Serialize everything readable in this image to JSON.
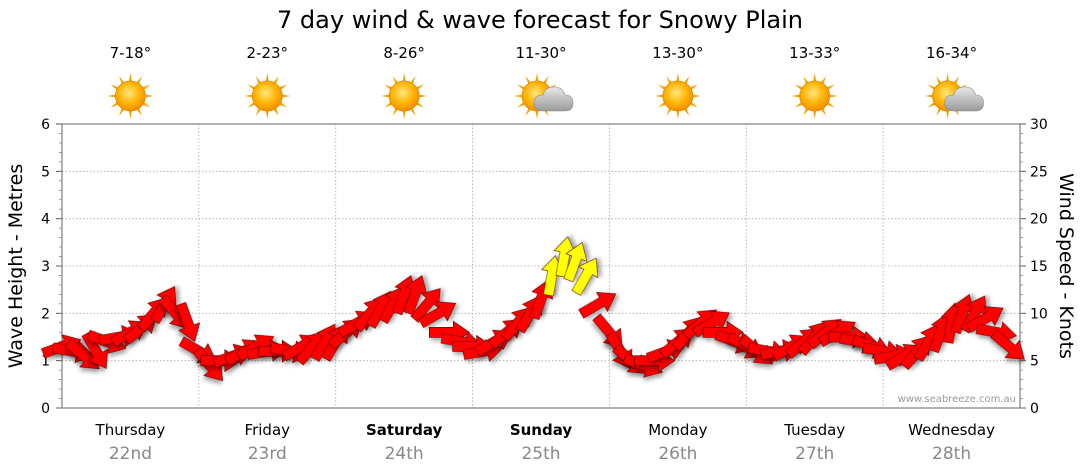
{
  "chart_data": {
    "type": "line",
    "title": "7 day wind & wave forecast for Snowy Plain",
    "ylabel_left": "Wave Height - Metres",
    "ylabel_right": "Wind Speed - Knots",
    "ylim_left": [
      0,
      6
    ],
    "ylim_right": [
      0,
      30
    ],
    "yticks_left": [
      "0",
      "1",
      "2",
      "3",
      "4",
      "5",
      "6"
    ],
    "yticks_right": [
      "0",
      "5",
      "10",
      "15",
      "20",
      "25",
      "30"
    ],
    "watermark": "www.seabreeze.com.au",
    "days": [
      {
        "name": "Thursday",
        "date": "22nd",
        "temp": "7-18°",
        "icon": "sun-icon",
        "bold": false
      },
      {
        "name": "Friday",
        "date": "23rd",
        "temp": "2-23°",
        "icon": "sun-icon",
        "bold": false
      },
      {
        "name": "Saturday",
        "date": "24th",
        "temp": "8-26°",
        "icon": "sun-icon",
        "bold": true
      },
      {
        "name": "Sunday",
        "date": "25th",
        "temp": "11-30°",
        "icon": "sun-cloud-icon",
        "bold": true
      },
      {
        "name": "Monday",
        "date": "26th",
        "temp": "13-30°",
        "icon": "sun-icon",
        "bold": false
      },
      {
        "name": "Tuesday",
        "date": "27th",
        "temp": "13-33°",
        "icon": "sun-icon",
        "bold": false
      },
      {
        "name": "Wednesday",
        "date": "28th",
        "temp": "16-34°",
        "icon": "sun-cloud-icon",
        "bold": false
      }
    ],
    "wind_colors": {
      "normal": "#ff0000",
      "strong": "#ffff00"
    },
    "series": [
      {
        "name": "Wind Speed",
        "unit": "knots",
        "x_day": [
          0.0,
          0.08,
          0.16,
          0.25,
          0.33,
          0.42,
          0.5,
          0.58,
          0.67,
          0.75,
          0.83,
          0.92,
          1.0,
          1.08,
          1.16,
          1.25,
          1.33,
          1.42,
          1.5,
          1.58,
          1.67,
          1.75,
          1.83,
          1.92,
          2.0,
          2.08,
          2.16,
          2.25,
          2.33,
          2.42,
          2.5,
          2.58,
          2.67,
          2.75,
          2.83,
          2.92,
          3.0,
          3.08,
          3.16,
          3.25,
          3.33,
          3.42,
          3.5,
          3.58,
          3.67,
          3.75,
          3.83,
          3.92,
          4.0,
          4.08,
          4.16,
          4.25,
          4.33,
          4.42,
          4.5,
          4.58,
          4.67,
          4.75,
          4.83,
          4.92,
          5.0,
          5.08,
          5.16,
          5.25,
          5.33,
          5.42,
          5.5,
          5.58,
          5.67,
          5.75,
          5.83,
          5.92,
          6.0,
          6.08,
          6.16,
          6.25,
          6.33,
          6.42,
          6.5,
          6.58,
          6.67,
          6.75,
          6.83,
          6.92
        ],
        "values": [
          6.5,
          6,
          5.5,
          6,
          7,
          7.5,
          8,
          8.5,
          10,
          11,
          10,
          9,
          6,
          4.5,
          5,
          5.5,
          6,
          6.5,
          6,
          6,
          6,
          6.5,
          6.5,
          7,
          7,
          8,
          9,
          10,
          10.5,
          11,
          12,
          12,
          11,
          10,
          8,
          7,
          6.5,
          6,
          7,
          8,
          9,
          10,
          11.5,
          14,
          16,
          15.5,
          14,
          11,
          8,
          6,
          5,
          4.5,
          5,
          6,
          7,
          8,
          9,
          9,
          8,
          7,
          6.5,
          6,
          6,
          6,
          6.5,
          7,
          7.5,
          8,
          8,
          7.5,
          7,
          6.5,
          6,
          5.5,
          5.5,
          6,
          7,
          8,
          9,
          10,
          10,
          9.5,
          8,
          6.5
        ],
        "direction_deg": [
          70,
          100,
          130,
          150,
          110,
          80,
          60,
          50,
          40,
          30,
          140,
          160,
          120,
          140,
          90,
          70,
          60,
          60,
          80,
          90,
          100,
          60,
          40,
          30,
          30,
          50,
          60,
          40,
          30,
          30,
          20,
          20,
          40,
          60,
          90,
          100,
          90,
          80,
          60,
          50,
          40,
          30,
          20,
          10,
          10,
          20,
          30,
          60,
          140,
          150,
          130,
          110,
          90,
          70,
          50,
          40,
          50,
          60,
          90,
          110,
          120,
          130,
          100,
          80,
          60,
          50,
          40,
          50,
          60,
          90,
          100,
          110,
          100,
          80,
          60,
          40,
          30,
          20,
          10,
          20,
          30,
          60,
          100,
          130
        ]
      }
    ]
  }
}
